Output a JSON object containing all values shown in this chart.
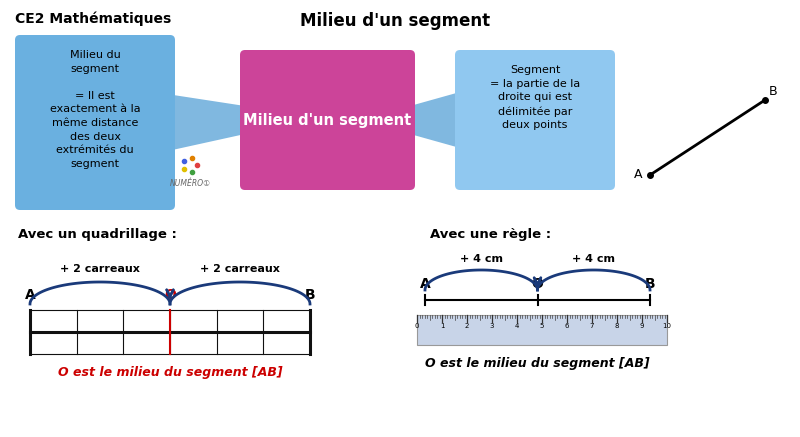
{
  "title": "Milieu d'un segment",
  "subtitle_left": "CE2 Mathématiques",
  "bg_color": "#ffffff",
  "box_left_color": "#6ab0e0",
  "box_center_color": "#cc4499",
  "box_right_color": "#90c8f0",
  "connector_color": "#80b8e0",
  "box_left_text": "Milieu du\nsegment\n\n= Il est\nexactement à la\nmême distance\ndes deux\nextrémités du\nsegment",
  "box_center_text": "Milieu d'un segment",
  "box_right_text": "Segment\n= la partie de la\ndroite qui est\ndélimitée par\ndeux points",
  "section1_title": "Avec un quadrillage :",
  "section2_title": "Avec une règle :",
  "caption1": "O est le milieu du segment [AB]",
  "caption2": "O est le milieu du segment [AB]",
  "arrow_color": "#1a3a7a",
  "grid_color": "#111111",
  "red_color": "#cc0000",
  "ruler_bg": "#c8d4e8",
  "black": "#000000"
}
